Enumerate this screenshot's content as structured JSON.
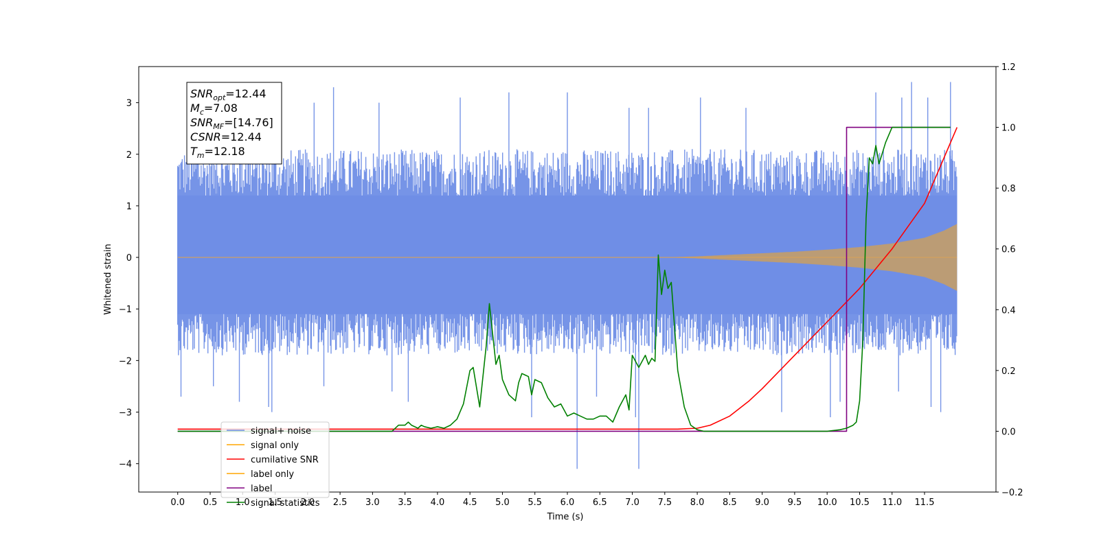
{
  "chart_data": {
    "type": "line",
    "xlabel": "Time (s)",
    "ylabel": "Whitened strain",
    "xlim": [
      -0.6,
      12.6
    ],
    "ylim": [
      -4.55,
      3.7
    ],
    "y2lim": [
      -0.2,
      1.2
    ],
    "x_ticks": [
      "0.0",
      "0.5",
      "1.0",
      "1.5",
      "2.0",
      "2.5",
      "3.0",
      "3.5",
      "4.0",
      "4.5",
      "5.0",
      "5.5",
      "6.0",
      "6.5",
      "7.0",
      "7.5",
      "8.0",
      "8.5",
      "9.0",
      "9.5",
      "10.0",
      "10.5",
      "11.0",
      "11.5"
    ],
    "y_ticks": [
      "3",
      "2",
      "1",
      "0",
      "−1",
      "−2",
      "−3",
      "−4"
    ],
    "y2_ticks": [
      "1.2",
      "1.0",
      "0.8",
      "0.6",
      "0.4",
      "0.2",
      "0.0",
      "−0.2"
    ],
    "annotation": {
      "lines": [
        {
          "sym": "SNR",
          "sub": "opt",
          "val": "=12.44"
        },
        {
          "sym": "M",
          "sub": "c",
          "val": "=7.08"
        },
        {
          "sym": "SNR",
          "sub": "MF",
          "val": "=[14.76]"
        },
        {
          "sym": "CSNR",
          "sub": "",
          "val": "=12.44"
        },
        {
          "sym": "T",
          "sub": "m",
          "val": "=12.18"
        }
      ]
    },
    "legend_position": "lower-left",
    "series": [
      {
        "name": "signal+ noise",
        "color": "#6f8ee6",
        "axis": "left",
        "render": "noise_band",
        "x_range": [
          0.0,
          12.0
        ],
        "typical_band": [
          -1.9,
          2.1
        ],
        "peaks": [
          [
            0.05,
            1.7
          ],
          [
            0.32,
            2.6
          ],
          [
            0.6,
            2.9
          ],
          [
            1.05,
            2.7
          ],
          [
            2.1,
            3.0
          ],
          [
            2.4,
            3.3
          ],
          [
            3.1,
            3.0
          ],
          [
            4.35,
            3.1
          ],
          [
            4.35,
            2.6
          ],
          [
            5.1,
            3.2
          ],
          [
            6.0,
            3.2
          ],
          [
            6.95,
            2.9
          ],
          [
            7.25,
            2.9
          ],
          [
            8.05,
            3.1
          ],
          [
            8.75,
            2.9
          ],
          [
            10.75,
            3.2
          ],
          [
            11.15,
            3.1
          ],
          [
            11.3,
            3.4
          ],
          [
            11.55,
            3.1
          ],
          [
            11.9,
            3.4
          ]
        ],
        "troughs": [
          [
            0.05,
            -2.7
          ],
          [
            0.55,
            -2.5
          ],
          [
            0.95,
            -2.8
          ],
          [
            1.4,
            -2.9
          ],
          [
            1.45,
            -3.0
          ],
          [
            2.25,
            -2.5
          ],
          [
            3.3,
            -2.6
          ],
          [
            3.55,
            -2.8
          ],
          [
            5.45,
            -3.1
          ],
          [
            6.15,
            -4.1
          ],
          [
            6.45,
            -2.7
          ],
          [
            7.05,
            -3.1
          ],
          [
            7.1,
            -4.1
          ],
          [
            9.3,
            -3.0
          ],
          [
            10.05,
            -3.1
          ],
          [
            10.2,
            -2.8
          ],
          [
            11.1,
            -2.6
          ],
          [
            11.6,
            -2.9
          ],
          [
            11.75,
            -3.0
          ]
        ]
      },
      {
        "name": "signal only",
        "color": "#ffa500",
        "axis": "left",
        "render": "chirp_envelope",
        "x": [
          0.0,
          7.5,
          8.0,
          8.5,
          9.0,
          9.5,
          10.0,
          10.5,
          11.0,
          11.5,
          11.8,
          12.0
        ],
        "amplitude": [
          0.0,
          0.0,
          0.02,
          0.05,
          0.08,
          0.11,
          0.15,
          0.2,
          0.27,
          0.38,
          0.52,
          0.65
        ]
      },
      {
        "name": "cumilative SNR",
        "color": "#ff0000",
        "axis": "right",
        "x": [
          0.0,
          7.7,
          8.0,
          8.2,
          8.5,
          8.8,
          9.0,
          9.5,
          10.0,
          10.5,
          11.0,
          11.5,
          12.0
        ],
        "values": [
          0.007,
          0.007,
          0.01,
          0.02,
          0.05,
          0.1,
          0.14,
          0.25,
          0.36,
          0.47,
          0.6,
          0.75,
          1.0
        ]
      },
      {
        "name": "label only",
        "color": "#ffa500",
        "axis": "right",
        "x": [
          0.0,
          10.3,
          10.3,
          11.9
        ],
        "values": [
          0.0,
          0.0,
          1.0,
          1.0
        ]
      },
      {
        "name": "label",
        "color": "#800080",
        "axis": "right",
        "x": [
          0.0,
          10.25,
          10.3,
          10.3,
          11.9
        ],
        "values": [
          0.0,
          0.0,
          0.0,
          1.0,
          1.0
        ]
      },
      {
        "name": "signal statistics",
        "color": "#008000",
        "axis": "right",
        "x": [
          0.0,
          3.3,
          3.4,
          3.5,
          3.55,
          3.6,
          3.7,
          3.75,
          3.8,
          3.9,
          4.0,
          4.1,
          4.2,
          4.3,
          4.4,
          4.5,
          4.55,
          4.65,
          4.75,
          4.8,
          4.9,
          4.95,
          5.0,
          5.1,
          5.2,
          5.25,
          5.3,
          5.4,
          5.45,
          5.5,
          5.6,
          5.7,
          5.8,
          5.9,
          6.0,
          6.1,
          6.2,
          6.3,
          6.4,
          6.5,
          6.6,
          6.7,
          6.8,
          6.9,
          6.95,
          7.0,
          7.1,
          7.2,
          7.25,
          7.3,
          7.35,
          7.4,
          7.45,
          7.5,
          7.55,
          7.6,
          7.7,
          7.8,
          7.9,
          8.0,
          8.1,
          8.2,
          9.0,
          9.5,
          10.0,
          10.2,
          10.3,
          10.4,
          10.45,
          10.5,
          10.55,
          10.6,
          10.65,
          10.7,
          10.75,
          10.8,
          10.9,
          11.0,
          11.9
        ],
        "values": [
          0.0,
          0.0,
          0.02,
          0.02,
          0.03,
          0.02,
          0.01,
          0.02,
          0.015,
          0.01,
          0.015,
          0.01,
          0.02,
          0.04,
          0.09,
          0.2,
          0.21,
          0.08,
          0.28,
          0.42,
          0.22,
          0.25,
          0.17,
          0.12,
          0.1,
          0.16,
          0.19,
          0.18,
          0.12,
          0.17,
          0.16,
          0.11,
          0.08,
          0.09,
          0.05,
          0.06,
          0.05,
          0.04,
          0.04,
          0.05,
          0.05,
          0.03,
          0.08,
          0.12,
          0.07,
          0.25,
          0.21,
          0.25,
          0.22,
          0.24,
          0.23,
          0.58,
          0.45,
          0.53,
          0.47,
          0.49,
          0.2,
          0.08,
          0.02,
          0.005,
          0.0,
          0.0,
          0.0,
          0.0,
          0.0,
          0.005,
          0.01,
          0.02,
          0.03,
          0.1,
          0.3,
          0.7,
          0.9,
          0.88,
          0.94,
          0.88,
          0.95,
          1.0,
          1.0
        ]
      }
    ]
  }
}
